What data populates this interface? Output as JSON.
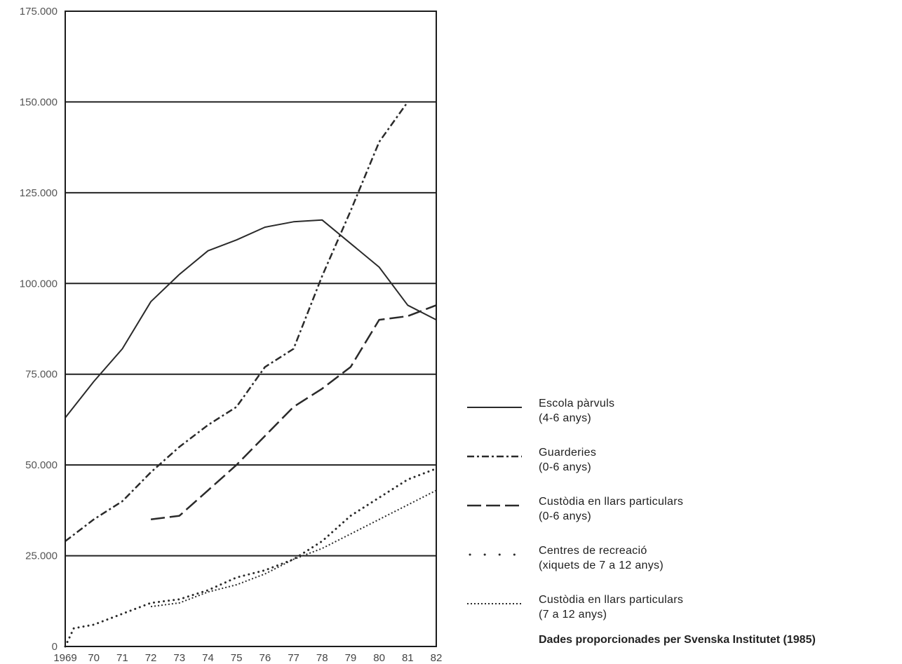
{
  "chart_data": {
    "type": "line",
    "x": [
      "1969",
      "70",
      "71",
      "72",
      "73",
      "74",
      "75",
      "76",
      "77",
      "78",
      "79",
      "80",
      "81",
      "82"
    ],
    "y_ticks": [
      "0",
      "25.000",
      "50.000",
      "75.000",
      "100.000",
      "125.000",
      "150.000",
      "175.000"
    ],
    "ylim": [
      0,
      175000
    ],
    "grid": "horizontal",
    "legend_position": "right-bottom",
    "series": [
      {
        "label": "Escola pàrvuls",
        "sublabel": "(4-6 anys)",
        "style": "solid",
        "x": [
          1969,
          1970,
          1971,
          1972,
          1973,
          1974,
          1975,
          1976,
          1977,
          1978,
          1979,
          1980,
          1981,
          1982
        ],
        "values": [
          63000,
          73000,
          82000,
          95000,
          102500,
          109000,
          112000,
          115500,
          117000,
          117500,
          111000,
          104500,
          94000,
          90000
        ]
      },
      {
        "label": "Guarderies",
        "sublabel": "(0-6 anys)",
        "style": "dashdot",
        "x": [
          1969,
          1970,
          1971,
          1972,
          1973,
          1974,
          1975,
          1976,
          1977,
          1978,
          1979,
          1980,
          1981
        ],
        "values": [
          29000,
          35000,
          40000,
          48000,
          55000,
          61000,
          66000,
          77000,
          82000,
          102000,
          120000,
          139000,
          150000
        ]
      },
      {
        "label": "Custòdia en llars particulars",
        "sublabel": "(0-6 anys)",
        "style": "dashed",
        "x": [
          1972,
          1973,
          1974,
          1975,
          1976,
          1977,
          1978,
          1979,
          1980,
          1981,
          1982
        ],
        "values": [
          35000,
          36000,
          43000,
          50000,
          58000,
          66000,
          71000,
          77000,
          90000,
          91000,
          94000
        ]
      },
      {
        "label": "Centres de recreació",
        "sublabel": "(xiquets de 7 a 12 anys)",
        "style": "sparse-dotted",
        "x": [
          1969,
          1969.3,
          1970,
          1971,
          1972,
          1973,
          1974,
          1975,
          1976,
          1977,
          1978,
          1979,
          1980,
          1981,
          1982
        ],
        "values": [
          0,
          5000,
          6000,
          9000,
          12000,
          13000,
          15500,
          19000,
          21000,
          24000,
          29000,
          36000,
          41000,
          46000,
          49000
        ]
      },
      {
        "label": "Custòdia en llars particulars",
        "sublabel": "(7 a 12 anys)",
        "style": "dotted",
        "x": [
          1972,
          1973,
          1974,
          1975,
          1976,
          1977,
          1978,
          1979,
          1980,
          1981,
          1982
        ],
        "values": [
          11000,
          12000,
          15000,
          17000,
          20000,
          24000,
          27000,
          31000,
          35000,
          39000,
          43000
        ]
      }
    ],
    "source_note": "Dades proporcionades per Svenska Institutet (1985)"
  }
}
